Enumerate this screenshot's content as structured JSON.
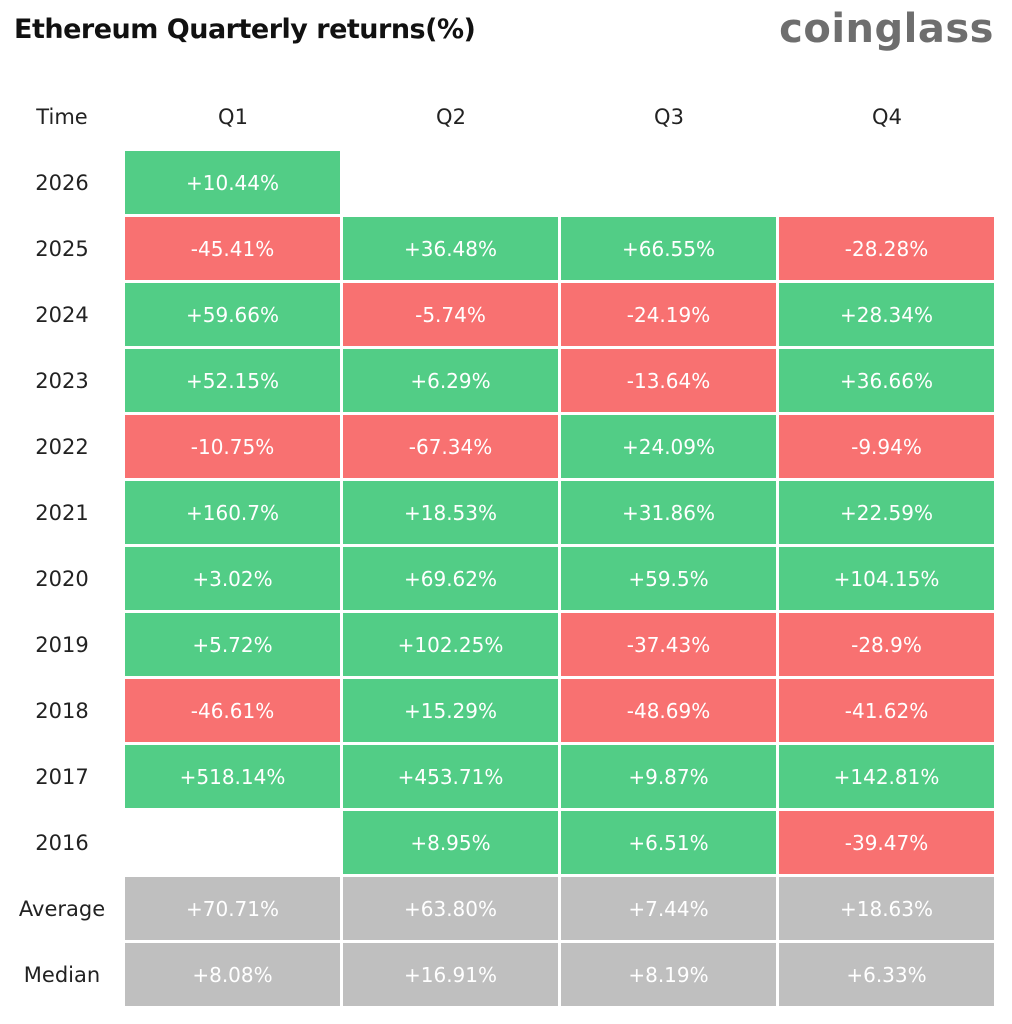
{
  "title": "Ethereum Quarterly returns(%)",
  "brand": "coinglass",
  "colors": {
    "positive": "#52cd86",
    "negative": "#f87171",
    "summary": "#bfbfbf"
  },
  "chart_data": {
    "type": "table",
    "columns": [
      "Time",
      "Q1",
      "Q2",
      "Q3",
      "Q4"
    ],
    "rows": [
      {
        "label": "2026",
        "values": [
          "+10.44%",
          "",
          "",
          ""
        ]
      },
      {
        "label": "2025",
        "values": [
          "-45.41%",
          "+36.48%",
          "+66.55%",
          "-28.28%"
        ]
      },
      {
        "label": "2024",
        "values": [
          "+59.66%",
          "-5.74%",
          "-24.19%",
          "+28.34%"
        ]
      },
      {
        "label": "2023",
        "values": [
          "+52.15%",
          "+6.29%",
          "-13.64%",
          "+36.66%"
        ]
      },
      {
        "label": "2022",
        "values": [
          "-10.75%",
          "-67.34%",
          "+24.09%",
          "-9.94%"
        ]
      },
      {
        "label": "2021",
        "values": [
          "+160.7%",
          "+18.53%",
          "+31.86%",
          "+22.59%"
        ]
      },
      {
        "label": "2020",
        "values": [
          "+3.02%",
          "+69.62%",
          "+59.5%",
          "+104.15%"
        ]
      },
      {
        "label": "2019",
        "values": [
          "+5.72%",
          "+102.25%",
          "-37.43%",
          "-28.9%"
        ]
      },
      {
        "label": "2018",
        "values": [
          "-46.61%",
          "+15.29%",
          "-48.69%",
          "-41.62%"
        ]
      },
      {
        "label": "2017",
        "values": [
          "+518.14%",
          "+453.71%",
          "+9.87%",
          "+142.81%"
        ]
      },
      {
        "label": "2016",
        "values": [
          "",
          "+8.95%",
          "+6.51%",
          "-39.47%"
        ]
      }
    ],
    "summary": [
      {
        "label": "Average",
        "values": [
          "+70.71%",
          "+63.80%",
          "+7.44%",
          "+18.63%"
        ]
      },
      {
        "label": "Median",
        "values": [
          "+8.08%",
          "+16.91%",
          "+8.19%",
          "+6.33%"
        ]
      }
    ]
  }
}
